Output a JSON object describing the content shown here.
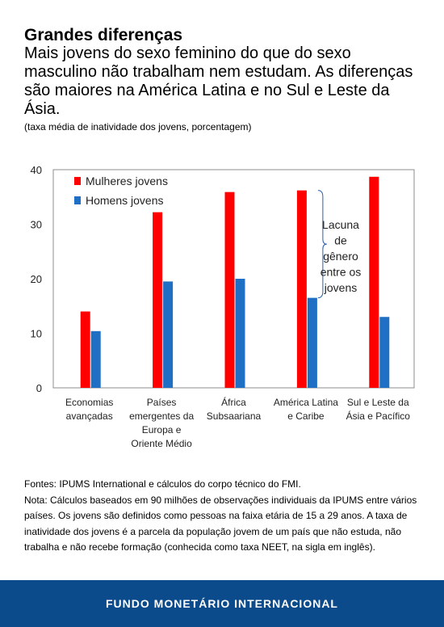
{
  "header": {
    "title": "Grandes diferenças",
    "subtitle": "Mais jovens do sexo feminino do que do sexo masculino não trabalham nem estudam. As diferenças são maiores na América Latina e no Sul e Leste da Ásia.",
    "units": "(taxa média de inatividade dos jovens, porcentagem)"
  },
  "chart_data": {
    "type": "bar",
    "categories": [
      [
        "Economias",
        "avançadas"
      ],
      [
        "Países",
        "emergentes da",
        "Europa e",
        "Oriente Médio"
      ],
      [
        "África",
        "Subsaariana"
      ],
      [
        "América Latina",
        "e Caribe"
      ],
      [
        "Sul e Leste da",
        "Ásia e Pacífico"
      ]
    ],
    "series": [
      {
        "name": "Mulheres jovens",
        "color": "#ff0000",
        "values": [
          14,
          32.2,
          35.9,
          36.2,
          38.7
        ]
      },
      {
        "name": "Homens jovens",
        "color": "#1f6fc5",
        "values": [
          10.4,
          19.5,
          20,
          16.5,
          13
        ]
      }
    ],
    "ylim": [
      0,
      40
    ],
    "yticks": [
      0,
      10,
      20,
      30,
      40
    ],
    "grid": false,
    "legend": "top-left",
    "annotation": {
      "category_index": 3,
      "lines": [
        "Lacuna",
        "de",
        "gênero",
        "entre os",
        "jovens"
      ]
    }
  },
  "notes": {
    "source": "Fontes: IPUMS International e cálculos do corpo técnico do FMI.",
    "note": "Nota: Cálculos baseados em 90 milhões de observações individuais da IPUMS entre vários países. Os jovens são definidos como pessoas na faixa etária de 15 a 29 anos. A taxa de inatividade dos jovens é a parcela da população jovem de um país que não estuda, não trabalha e não recebe formação (conhecida como taxa NEET, na sigla em inglês)."
  },
  "footer": {
    "label": "FUNDO MONETÁRIO INTERNACIONAL"
  }
}
